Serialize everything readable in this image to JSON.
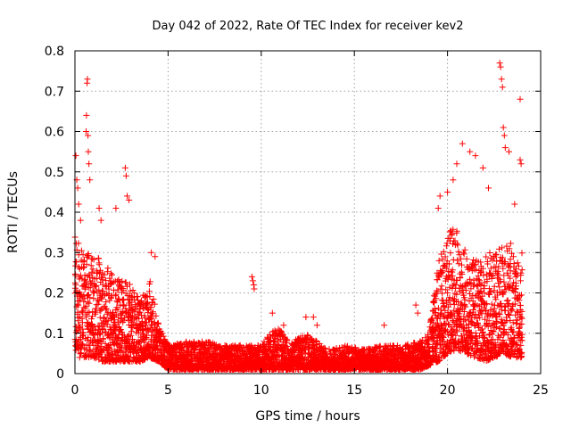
{
  "chart_data": {
    "type": "scatter",
    "title": "Day 042 of 2022, Rate Of TEC Index for receiver kev2",
    "xlabel": "GPS time / hours",
    "ylabel": "ROTI / TECUs",
    "xlim": [
      0,
      25
    ],
    "ylim": [
      0,
      0.8
    ],
    "xticks": [
      0,
      5,
      10,
      15,
      20,
      25
    ],
    "yticks": [
      0,
      0.1,
      0.2,
      0.3,
      0.4,
      0.5,
      0.6,
      0.7,
      0.8
    ],
    "grid": true,
    "marker": "+",
    "color": "#ff0000",
    "envelope": [
      {
        "x": 0.0,
        "low": 0.04,
        "high": 0.34
      },
      {
        "x": 0.5,
        "low": 0.04,
        "high": 0.3
      },
      {
        "x": 1.0,
        "low": 0.04,
        "high": 0.3
      },
      {
        "x": 1.5,
        "low": 0.03,
        "high": 0.28
      },
      {
        "x": 2.0,
        "low": 0.03,
        "high": 0.26
      },
      {
        "x": 2.5,
        "low": 0.03,
        "high": 0.24
      },
      {
        "x": 3.0,
        "low": 0.03,
        "high": 0.22
      },
      {
        "x": 3.5,
        "low": 0.03,
        "high": 0.18
      },
      {
        "x": 4.0,
        "low": 0.04,
        "high": 0.24
      },
      {
        "x": 4.5,
        "low": 0.03,
        "high": 0.12
      },
      {
        "x": 5.0,
        "low": 0.01,
        "high": 0.07
      },
      {
        "x": 6.0,
        "low": 0.01,
        "high": 0.08
      },
      {
        "x": 7.0,
        "low": 0.01,
        "high": 0.08
      },
      {
        "x": 8.0,
        "low": 0.01,
        "high": 0.07
      },
      {
        "x": 9.0,
        "low": 0.01,
        "high": 0.07
      },
      {
        "x": 10.0,
        "low": 0.01,
        "high": 0.07
      },
      {
        "x": 10.8,
        "low": 0.01,
        "high": 0.12
      },
      {
        "x": 11.5,
        "low": 0.01,
        "high": 0.08
      },
      {
        "x": 12.5,
        "low": 0.01,
        "high": 0.1
      },
      {
        "x": 13.5,
        "low": 0.01,
        "high": 0.06
      },
      {
        "x": 14.5,
        "low": 0.01,
        "high": 0.07
      },
      {
        "x": 15.5,
        "low": 0.01,
        "high": 0.06
      },
      {
        "x": 16.5,
        "low": 0.01,
        "high": 0.07
      },
      {
        "x": 17.5,
        "low": 0.01,
        "high": 0.07
      },
      {
        "x": 18.5,
        "low": 0.01,
        "high": 0.08
      },
      {
        "x": 19.0,
        "low": 0.02,
        "high": 0.1
      },
      {
        "x": 19.5,
        "low": 0.03,
        "high": 0.28
      },
      {
        "x": 20.0,
        "low": 0.05,
        "high": 0.36
      },
      {
        "x": 20.5,
        "low": 0.06,
        "high": 0.36
      },
      {
        "x": 21.0,
        "low": 0.05,
        "high": 0.3
      },
      {
        "x": 21.5,
        "low": 0.04,
        "high": 0.28
      },
      {
        "x": 22.0,
        "low": 0.03,
        "high": 0.3
      },
      {
        "x": 22.5,
        "low": 0.04,
        "high": 0.3
      },
      {
        "x": 23.0,
        "low": 0.05,
        "high": 0.34
      },
      {
        "x": 23.5,
        "low": 0.04,
        "high": 0.32
      },
      {
        "x": 24.0,
        "low": 0.04,
        "high": 0.3
      }
    ],
    "outliers": [
      [
        0.05,
        0.54
      ],
      [
        0.1,
        0.48
      ],
      [
        0.15,
        0.46
      ],
      [
        0.2,
        0.42
      ],
      [
        0.3,
        0.38
      ],
      [
        0.6,
        0.6
      ],
      [
        0.62,
        0.64
      ],
      [
        0.65,
        0.72
      ],
      [
        0.67,
        0.73
      ],
      [
        0.7,
        0.59
      ],
      [
        0.72,
        0.55
      ],
      [
        0.75,
        0.52
      ],
      [
        0.8,
        0.48
      ],
      [
        1.3,
        0.41
      ],
      [
        1.4,
        0.38
      ],
      [
        2.2,
        0.41
      ],
      [
        2.7,
        0.51
      ],
      [
        2.75,
        0.49
      ],
      [
        2.8,
        0.44
      ],
      [
        2.9,
        0.43
      ],
      [
        4.1,
        0.3
      ],
      [
        4.3,
        0.29
      ],
      [
        9.5,
        0.24
      ],
      [
        9.55,
        0.23
      ],
      [
        9.6,
        0.22
      ],
      [
        9.62,
        0.21
      ],
      [
        10.6,
        0.15
      ],
      [
        11.2,
        0.12
      ],
      [
        12.4,
        0.14
      ],
      [
        12.8,
        0.14
      ],
      [
        13.0,
        0.12
      ],
      [
        16.6,
        0.12
      ],
      [
        18.3,
        0.17
      ],
      [
        18.4,
        0.15
      ],
      [
        19.5,
        0.41
      ],
      [
        19.6,
        0.44
      ],
      [
        20.0,
        0.45
      ],
      [
        20.3,
        0.48
      ],
      [
        20.5,
        0.52
      ],
      [
        20.8,
        0.57
      ],
      [
        21.2,
        0.55
      ],
      [
        21.5,
        0.54
      ],
      [
        21.9,
        0.51
      ],
      [
        22.2,
        0.46
      ],
      [
        22.8,
        0.77
      ],
      [
        22.85,
        0.76
      ],
      [
        22.9,
        0.73
      ],
      [
        22.95,
        0.71
      ],
      [
        23.0,
        0.61
      ],
      [
        23.05,
        0.59
      ],
      [
        23.1,
        0.56
      ],
      [
        23.3,
        0.55
      ],
      [
        23.6,
        0.42
      ],
      [
        23.9,
        0.53
      ],
      [
        23.95,
        0.52
      ],
      [
        23.9,
        0.68
      ]
    ]
  }
}
